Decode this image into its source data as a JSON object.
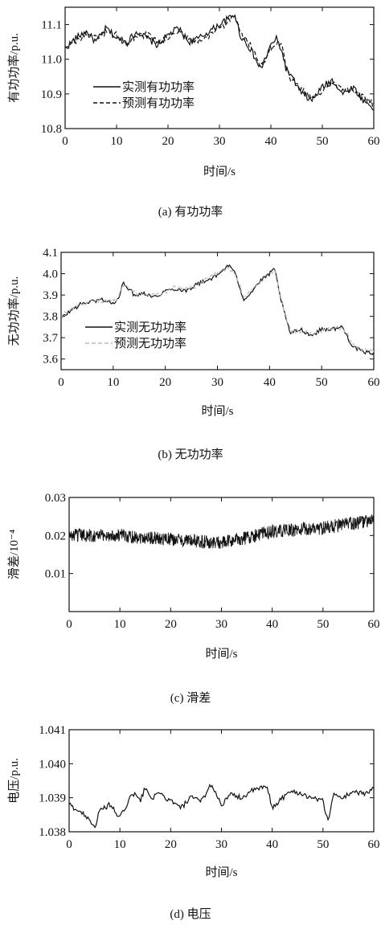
{
  "chart_data": [
    {
      "type": "line",
      "caption": "(a) 有功功率",
      "xlabel": "时间/s",
      "ylabel": "有功功率/p.u.",
      "xlim": [
        0,
        60
      ],
      "ylim": [
        10.8,
        11.15
      ],
      "xticks": [
        "0",
        "10",
        "20",
        "30",
        "40",
        "50",
        "60"
      ],
      "yticks": [
        10.8,
        10.9,
        11.0,
        11.1
      ],
      "ytick_labels": [
        "10.8",
        "10.9",
        "11.0",
        "11.1"
      ],
      "legend_position": "lower-left",
      "series": [
        {
          "name": "实测有功功率",
          "color": "#111111",
          "style": "solid",
          "x": [
            0,
            2,
            4,
            6,
            8,
            10,
            12,
            14,
            16,
            18,
            20,
            22,
            24,
            26,
            28,
            30,
            32,
            33,
            34,
            36,
            38,
            40,
            41,
            42,
            43,
            44,
            46,
            48,
            50,
            52,
            54,
            56,
            58,
            60
          ],
          "y": [
            11.03,
            11.06,
            11.08,
            11.05,
            11.09,
            11.06,
            11.05,
            11.08,
            11.06,
            11.04,
            11.07,
            11.09,
            11.05,
            11.06,
            11.08,
            11.1,
            11.12,
            11.13,
            11.07,
            11.03,
            10.97,
            11.04,
            11.06,
            11.03,
            10.97,
            10.95,
            10.9,
            10.88,
            10.92,
            10.94,
            10.9,
            10.92,
            10.88,
            10.86
          ]
        },
        {
          "name": "预测有功功率",
          "color": "#111111",
          "style": "dashed",
          "x": [
            0,
            2,
            4,
            6,
            8,
            10,
            12,
            14,
            16,
            18,
            20,
            22,
            24,
            26,
            28,
            30,
            32,
            33,
            34,
            36,
            38,
            40,
            41,
            42,
            43,
            44,
            46,
            48,
            50,
            52,
            54,
            56,
            58,
            60
          ],
          "y": [
            11.04,
            11.05,
            11.07,
            11.06,
            11.08,
            11.07,
            11.04,
            11.07,
            11.07,
            11.05,
            11.06,
            11.08,
            11.06,
            11.05,
            11.07,
            11.09,
            11.11,
            11.12,
            11.08,
            11.04,
            10.98,
            11.03,
            11.05,
            11.04,
            10.98,
            10.94,
            10.91,
            10.89,
            10.91,
            10.93,
            10.91,
            10.91,
            10.89,
            10.87
          ]
        }
      ]
    },
    {
      "type": "line",
      "caption": "(b) 无功功率",
      "xlabel": "时间/s",
      "ylabel": "无功功率/p.u.",
      "xlim": [
        0,
        60
      ],
      "ylim": [
        3.55,
        4.1
      ],
      "xticks": [
        "0",
        "10",
        "20",
        "30",
        "40",
        "50",
        "60"
      ],
      "yticks": [
        3.6,
        3.7,
        3.8,
        3.9,
        4.0,
        4.1
      ],
      "ytick_labels": [
        "3.6",
        "3.7",
        "3.8",
        "3.9",
        "4.0",
        "4.1"
      ],
      "legend_position": "lower-left",
      "series": [
        {
          "name": "实测无功功率",
          "color": "#111111",
          "style": "solid",
          "x": [
            0,
            2,
            4,
            6,
            8,
            10,
            11,
            12,
            14,
            16,
            18,
            20,
            22,
            24,
            26,
            28,
            30,
            32,
            33,
            34,
            35,
            36,
            38,
            40,
            41,
            42,
            43,
            44,
            46,
            48,
            50,
            52,
            54,
            55,
            56,
            58,
            60
          ],
          "y": [
            3.79,
            3.83,
            3.86,
            3.87,
            3.88,
            3.86,
            3.88,
            3.96,
            3.9,
            3.91,
            3.89,
            3.92,
            3.93,
            3.92,
            3.95,
            3.97,
            3.99,
            4.04,
            4.02,
            3.96,
            3.88,
            3.9,
            3.96,
            4.0,
            4.02,
            3.9,
            3.8,
            3.72,
            3.74,
            3.71,
            3.74,
            3.74,
            3.75,
            3.7,
            3.66,
            3.63,
            3.63
          ]
        },
        {
          "name": "预测无功功率",
          "color": "#b8b8b8",
          "style": "dashed",
          "x": [
            0,
            2,
            4,
            6,
            8,
            10,
            11,
            12,
            14,
            16,
            18,
            20,
            22,
            24,
            26,
            28,
            30,
            32,
            33,
            34,
            35,
            36,
            38,
            40,
            41,
            42,
            43,
            44,
            46,
            48,
            50,
            52,
            54,
            55,
            56,
            58,
            60
          ],
          "y": [
            3.8,
            3.84,
            3.85,
            3.88,
            3.87,
            3.87,
            3.89,
            3.95,
            3.91,
            3.9,
            3.9,
            3.91,
            3.94,
            3.93,
            3.94,
            3.98,
            4.0,
            4.03,
            4.01,
            3.97,
            3.89,
            3.91,
            3.95,
            4.01,
            4.01,
            3.91,
            3.81,
            3.73,
            3.73,
            3.72,
            3.73,
            3.75,
            3.74,
            3.71,
            3.67,
            3.64,
            3.64
          ]
        }
      ]
    },
    {
      "type": "line",
      "caption": "(c) 滑差",
      "xlabel": "时间/s",
      "ylabel": "滑差/10⁻⁴",
      "xlim": [
        0,
        60
      ],
      "ylim": [
        0,
        0.03
      ],
      "xticks": [
        "0",
        "10",
        "20",
        "30",
        "40",
        "50",
        "60"
      ],
      "yticks": [
        0.01,
        0.02,
        0.03
      ],
      "ytick_labels": [
        "0.01",
        "0.02",
        "0.03"
      ],
      "series": [
        {
          "color": "#111111",
          "style": "solid",
          "x": [
            0,
            10,
            20,
            30,
            40,
            50,
            60
          ],
          "y": [
            0.02,
            0.02,
            0.019,
            0.018,
            0.021,
            0.022,
            0.024
          ]
        }
      ]
    },
    {
      "type": "line",
      "caption": "(d) 电压",
      "xlabel": "时间/s",
      "ylabel": "电压/p.u.",
      "xlim": [
        0,
        60
      ],
      "ylim": [
        1.038,
        1.041
      ],
      "xticks": [
        "0",
        "10",
        "20",
        "30",
        "40",
        "50",
        "60"
      ],
      "yticks": [
        1.038,
        1.039,
        1.04,
        1.041
      ],
      "ytick_labels": [
        "1.038",
        "1.039",
        "1.040",
        "1.041"
      ],
      "series": [
        {
          "color": "#111111",
          "style": "solid",
          "x": [
            0,
            2,
            4,
            5,
            6,
            8,
            10,
            12,
            13,
            14,
            15,
            16,
            18,
            20,
            22,
            24,
            26,
            28,
            30,
            32,
            34,
            36,
            38,
            39,
            40,
            42,
            44,
            46,
            48,
            50,
            51,
            52,
            54,
            56,
            58,
            60
          ],
          "y": [
            1.0388,
            1.0386,
            1.0384,
            1.0381,
            1.0386,
            1.0388,
            1.0384,
            1.039,
            1.0391,
            1.0389,
            1.0393,
            1.039,
            1.0391,
            1.0389,
            1.0387,
            1.039,
            1.0389,
            1.0394,
            1.0388,
            1.0391,
            1.039,
            1.0392,
            1.0393,
            1.0393,
            1.0387,
            1.039,
            1.0392,
            1.0391,
            1.039,
            1.0389,
            1.0383,
            1.0391,
            1.039,
            1.0392,
            1.0391,
            1.0393
          ]
        }
      ]
    }
  ]
}
